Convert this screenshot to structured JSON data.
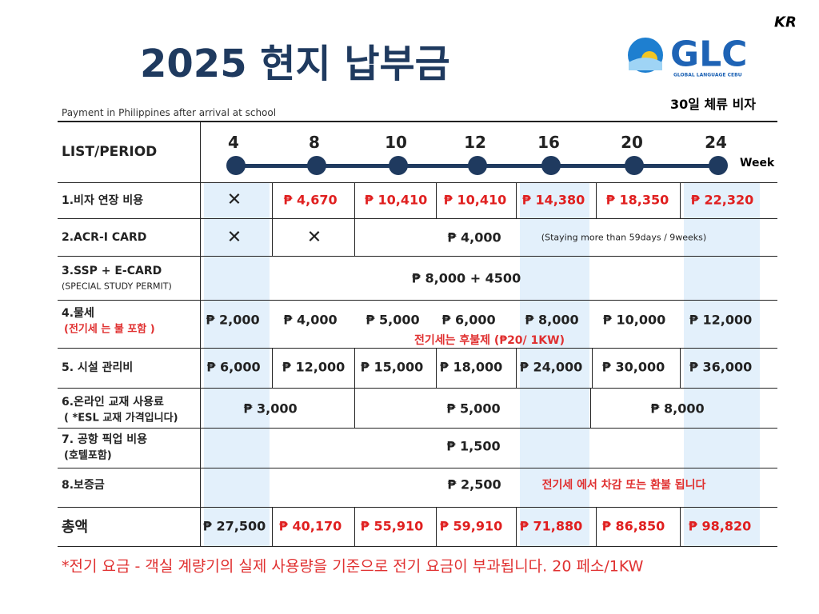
{
  "lang": "KR",
  "title": "2025 현지 납부금",
  "logo": {
    "text": "GLC",
    "subtitle": "GLOBAL LANGUAGE CEBU"
  },
  "subtitle": "Payment in Philippines after arrival at school",
  "visa_note": "30일 체류 비자",
  "table": {
    "header": "LIST/PERIOD",
    "weeks": [
      "4",
      "8",
      "10",
      "12",
      "16",
      "20",
      "24"
    ],
    "week_unit": "Week",
    "rows": [
      {
        "label": "1.비자 연장 비용",
        "cells": [
          "✕",
          "₱ 4,670",
          "₱ 10,410",
          "₱ 10,410",
          "₱ 14,380",
          "₱ 18,350",
          "₱ 22,320"
        ]
      },
      {
        "label": "2.ACR-I CARD",
        "cells": [
          "✕",
          "✕",
          "₱ 4,000"
        ],
        "note": "(Staying more than 59days / 9weeks)"
      },
      {
        "label": "3.SSP + E-CARD",
        "sublabel": "(SPECIAL STUDY PERMIT)",
        "cells": [
          "₱ 8,000 + 4500"
        ]
      },
      {
        "label": "4.물세",
        "sublabel": "(전기세 는 불 포함 )",
        "cells": [
          "₱ 2,000",
          "₱ 4,000",
          "₱ 5,000",
          "₱ 6,000",
          "₱ 8,000",
          "₱ 10,000",
          "₱ 12,000"
        ],
        "note": "전기세는 후불제  (₱20/ 1KW)"
      },
      {
        "label": "5. 시설 관리비",
        "cells": [
          "₱ 6,000",
          "₱ 12,000",
          "₱ 15,000",
          "₱ 18,000",
          "₱ 24,000",
          "₱ 30,000",
          "₱ 36,000"
        ]
      },
      {
        "label": "6.온라인 교재 사용료",
        "sublabel": "( *ESL 교재 가격입니다)",
        "cells": [
          "₱ 3,000",
          "₱ 5,000",
          "₱ 8,000"
        ]
      },
      {
        "label": "7. 공항 픽업 비용",
        "sublabel": "(호텔포함)",
        "cells": [
          "₱ 1,500"
        ]
      },
      {
        "label": "8.보증금",
        "cells": [
          "₱ 2,500"
        ],
        "note": "전기세 에서 차감 또는 환불 됩니다"
      },
      {
        "label": "총액",
        "cells": [
          "₱ 27,500",
          "₱  40,170",
          "₱ 55,910",
          "₱ 59,910",
          "₱ 71,880",
          "₱ 86,850",
          "₱ 98,820"
        ]
      }
    ]
  },
  "footnote": "*전기 요금 - 객실 계량기의 실제 사용량을 기준으로 전기 요금이 부과됩니다. 20 페소/1KW"
}
